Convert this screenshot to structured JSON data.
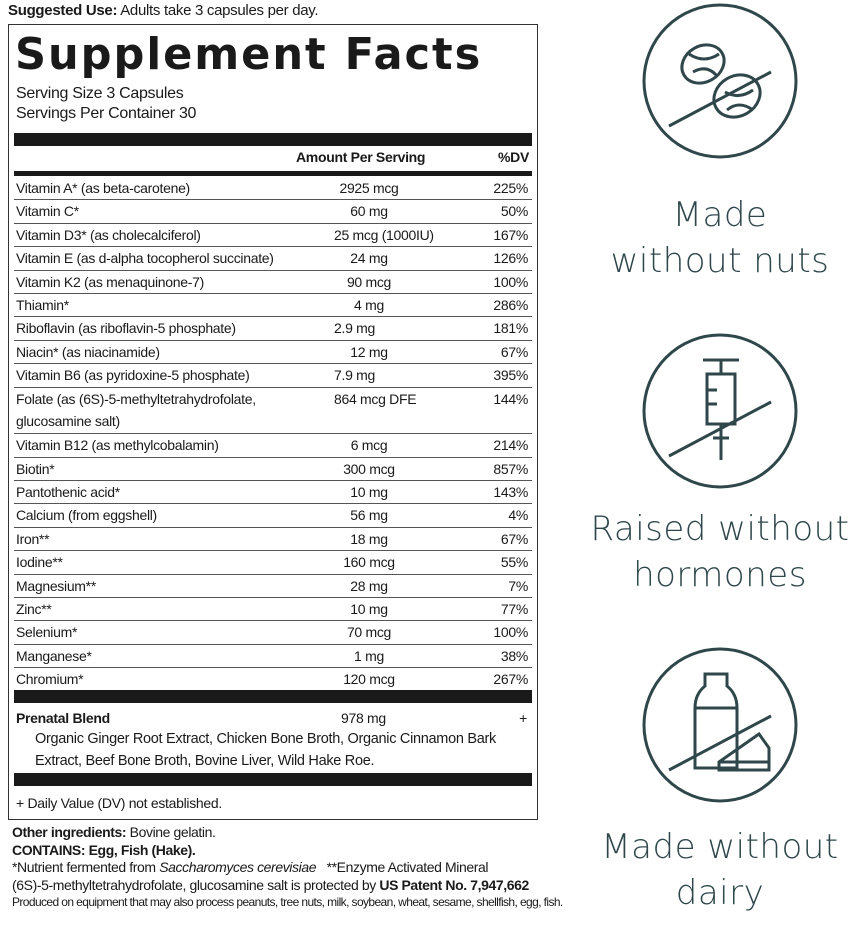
{
  "suggested_use": {
    "label": "Suggested Use:",
    "text": " Adults take 3 capsules per day."
  },
  "title": "Supplement Facts",
  "serving_size": "Serving Size 3 Capsules",
  "servings_per_container": "Servings Per Container 30",
  "headers": {
    "amount": "Amount Per Serving",
    "dv": "%DV"
  },
  "nutrients": [
    {
      "name": "Vitamin A* (as beta-carotene)",
      "amount": "2925 mcg",
      "dv": "225%"
    },
    {
      "name": "Vitamin C*",
      "amount": "60 mg",
      "dv": "50%"
    },
    {
      "name": "Vitamin D3* (as cholecalciferol)",
      "amount": "25 mcg (1000IU)",
      "dv": "167%"
    },
    {
      "name": "Vitamin E (as d-alpha tocopherol succinate)",
      "amount": "24 mg",
      "dv": "126%"
    },
    {
      "name": "Vitamin K2 (as menaquinone-7)",
      "amount": "90 mcg",
      "dv": "100%"
    },
    {
      "name": "Thiamin*",
      "amount": "4 mg",
      "dv": "286%"
    },
    {
      "name": "Riboflavin (as riboflavin-5 phosphate)",
      "amount": "2.9 mg",
      "dv": "181%"
    },
    {
      "name": "Niacin* (as niacinamide)",
      "amount": "12 mg",
      "dv": "67%"
    },
    {
      "name": "Vitamin B6 (as pyridoxine-5 phosphate)",
      "amount": "7.9 mg",
      "dv": "395%"
    },
    {
      "name": "Folate (as (6S)-5-methyltetrahydrofolate, glucosamine salt)",
      "amount": "864 mcg DFE",
      "dv": "144%"
    },
    {
      "name": "Vitamin B12 (as methylcobalamin)",
      "amount": "6 mcg",
      "dv": "214%"
    },
    {
      "name": "Biotin*",
      "amount": "300 mcg",
      "dv": "857%"
    },
    {
      "name": "Pantothenic acid*",
      "amount": "10 mg",
      "dv": "143%"
    },
    {
      "name": "Calcium (from eggshell)",
      "amount": "56 mg",
      "dv": "4%"
    },
    {
      "name": "Iron**",
      "amount": "18 mg",
      "dv": "67%"
    },
    {
      "name": "Iodine**",
      "amount": "160 mcg",
      "dv": "55%"
    },
    {
      "name": "Magnesium**",
      "amount": "28 mg",
      "dv": "7%"
    },
    {
      "name": "Zinc**",
      "amount": "10 mg",
      "dv": "77%"
    },
    {
      "name": "Selenium*",
      "amount": "70 mcg",
      "dv": "100%"
    },
    {
      "name": "Manganese*",
      "amount": "1 mg",
      "dv": "38%"
    },
    {
      "name": "Chromium*",
      "amount": "120 mcg",
      "dv": "267%"
    }
  ],
  "blend": {
    "name": "Prenatal Blend",
    "amount": "978 mg",
    "dv": "+",
    "ingredients": "Organic Ginger Root Extract, Chicken Bone Broth, Organic Cinnamon Bark Extract, Beef Bone Broth, Bovine Liver, Wild Hake Roe."
  },
  "footnote": "+ Daily Value (DV) not established.",
  "other": {
    "label": "Other ingredients:",
    "text": " Bovine gelatin."
  },
  "contains": "CONTAINS: Egg, Fish (Hake).",
  "notes": {
    "n1a": "*Nutrient fermented from ",
    "n1b": "Saccharomyces cerevisiae",
    "n1c": "   **Enzyme Activated Mineral",
    "n2a": "(6S)-5-methyltetrahydrofolate, glucosamine salt is protected by ",
    "n2b": "US Patent No. 7,947,662",
    "n3": "Produced on equipment that may also process peanuts, tree nuts, milk, soybean, wheat, sesame, shellfish, egg, fish."
  },
  "badges": [
    {
      "icon": "no-nuts-icon",
      "line1": "Made",
      "line2": "without nuts"
    },
    {
      "icon": "no-hormones-icon",
      "line1": "Raised without",
      "line2": "hormones"
    },
    {
      "icon": "no-dairy-icon",
      "line1": "Made without",
      "line2": "dairy"
    }
  ],
  "colors": {
    "badge": "#2f474b",
    "text": "#1a1a1a"
  }
}
